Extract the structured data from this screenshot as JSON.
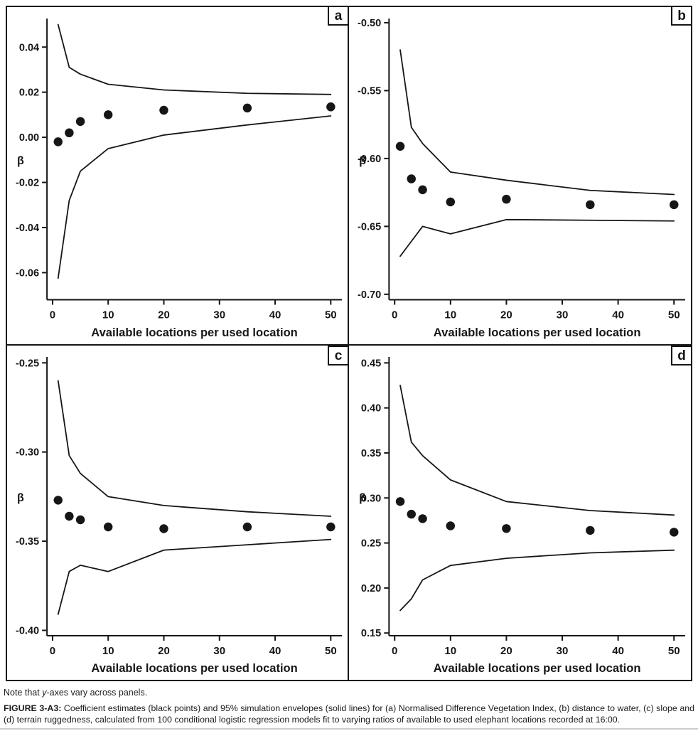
{
  "caption": {
    "note_prefix": "Note that ",
    "note_italic": "y",
    "note_suffix": "-axes vary across panels.",
    "figure_label": "FIGURE 3-A3:",
    "figure_text": " Coefficient estimates (black points) and 95% simulation envelopes (solid lines) for (a) Normalised Difference Vegetation Index, (b) distance to water, (c) slope and (d) terrain ruggedness, calculated from 100 conditional logistic regression models fit to varying ratios of available to used elephant locations recorded at 16:00."
  },
  "colors": {
    "ink": "#161616",
    "background": "#ffffff",
    "page_rule": "#cccccc"
  },
  "chart_data": [
    {
      "type": "scatter",
      "panel_label": "a",
      "variable": "Normalised Difference Vegetation Index",
      "xlabel": "Available locations per used location",
      "ylabel": "β",
      "legend": {
        "points": "coefficient estimates",
        "lines": "95% simulation envelope"
      },
      "x": [
        1,
        3,
        5,
        10,
        20,
        35,
        50
      ],
      "points": [
        -0.002,
        0.002,
        0.007,
        0.01,
        0.012,
        0.013,
        0.0135
      ],
      "upper_envelope": [
        0.05,
        0.031,
        0.028,
        0.0235,
        0.021,
        0.0195,
        0.019
      ],
      "lower_envelope": [
        -0.0625,
        -0.028,
        -0.015,
        -0.005,
        0.001,
        0.0055,
        0.0095
      ],
      "x_ticks": [
        0,
        10,
        20,
        30,
        40,
        50
      ],
      "y_ticks": [
        0.04,
        0.02,
        0.0,
        -0.02,
        -0.04,
        -0.06
      ],
      "x_domain": [
        -1,
        52
      ],
      "y_domain": [
        -0.072,
        0.052
      ],
      "grid": false
    },
    {
      "type": "scatter",
      "panel_label": "b",
      "variable": "distance to water",
      "xlabel": "Available locations per used location",
      "ylabel": "β",
      "legend": {
        "points": "coefficient estimates",
        "lines": "95% simulation envelope"
      },
      "x": [
        1,
        3,
        5,
        10,
        20,
        35,
        50
      ],
      "points": [
        -0.591,
        -0.615,
        -0.623,
        -0.632,
        -0.63,
        -0.634,
        -0.634
      ],
      "upper_envelope": [
        -0.52,
        -0.577,
        -0.589,
        -0.61,
        -0.616,
        -0.6235,
        -0.6265
      ],
      "lower_envelope": [
        -0.672,
        -0.661,
        -0.65,
        -0.6555,
        -0.645,
        -0.6455,
        -0.646
      ],
      "x_ticks": [
        0,
        10,
        20,
        30,
        40,
        50
      ],
      "y_ticks": [
        -0.5,
        -0.55,
        -0.6,
        -0.65,
        -0.7
      ],
      "x_domain": [
        -1,
        52
      ],
      "y_domain": [
        -0.704,
        -0.498
      ],
      "grid": false
    },
    {
      "type": "scatter",
      "panel_label": "c",
      "variable": "slope",
      "xlabel": "Available locations per used location",
      "ylabel": "β",
      "legend": {
        "points": "coefficient estimates",
        "lines": "95% simulation envelope"
      },
      "x": [
        1,
        3,
        5,
        10,
        20,
        35,
        50
      ],
      "points": [
        -0.327,
        -0.336,
        -0.338,
        -0.342,
        -0.343,
        -0.342,
        -0.342
      ],
      "upper_envelope": [
        -0.26,
        -0.302,
        -0.312,
        -0.325,
        -0.33,
        -0.3335,
        -0.336
      ],
      "lower_envelope": [
        -0.391,
        -0.367,
        -0.3635,
        -0.367,
        -0.355,
        -0.352,
        -0.349
      ],
      "x_ticks": [
        0,
        10,
        20,
        30,
        40,
        50
      ],
      "y_ticks": [
        -0.25,
        -0.3,
        -0.35,
        -0.4
      ],
      "x_domain": [
        -1,
        52
      ],
      "y_domain": [
        -0.403,
        -0.2475
      ],
      "grid": false
    },
    {
      "type": "scatter",
      "panel_label": "d",
      "variable": "terrain ruggedness",
      "xlabel": "Available locations per used location",
      "ylabel": "β",
      "legend": {
        "points": "coefficient estimates",
        "lines": "95% simulation envelope"
      },
      "x": [
        1,
        3,
        5,
        10,
        20,
        35,
        50
      ],
      "points": [
        0.296,
        0.282,
        0.277,
        0.269,
        0.266,
        0.264,
        0.262
      ],
      "upper_envelope": [
        0.425,
        0.362,
        0.347,
        0.32,
        0.296,
        0.286,
        0.281
      ],
      "lower_envelope": [
        0.175,
        0.188,
        0.209,
        0.225,
        0.233,
        0.239,
        0.242
      ],
      "x_ticks": [
        0,
        10,
        20,
        30,
        40,
        50
      ],
      "y_ticks": [
        0.45,
        0.4,
        0.35,
        0.3,
        0.25,
        0.2,
        0.15
      ],
      "x_domain": [
        -1,
        52
      ],
      "y_domain": [
        0.147,
        0.455
      ],
      "grid": false
    }
  ]
}
